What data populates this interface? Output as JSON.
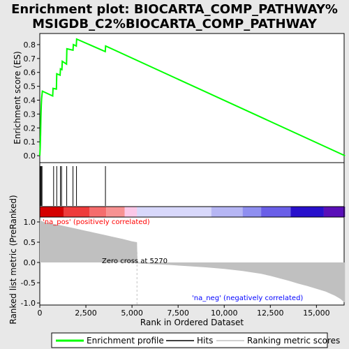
{
  "chart_data": {
    "type": "line",
    "title_line1": "Enrichment plot: BIOCARTA_COMP_PATHWAY%",
    "title_line2": "MSIGDB_C2%BIOCARTA_COMP_PATHWAY",
    "xlabel": "Rank in Ordered Dataset",
    "es_ylabel": "Enrichment score (ES)",
    "metric_ylabel": "Ranked list metric (PreRanked)",
    "xlim": [
      0,
      16500
    ],
    "es_ylim": [
      -0.05,
      0.88
    ],
    "metric_ylim": [
      -1.05,
      1.12
    ],
    "x_ticks": [
      0,
      2500,
      5000,
      7500,
      10000,
      12500,
      15000
    ],
    "x_tick_labels": [
      "0",
      "2,500",
      "5,000",
      "7,500",
      "10,000",
      "12,500",
      "15,000"
    ],
    "es_ticks": [
      0.0,
      0.1,
      0.2,
      0.3,
      0.4,
      0.5,
      0.6,
      0.7,
      0.8
    ],
    "es_tick_labels": [
      "0.0",
      "0.1",
      "0.2",
      "0.3",
      "0.4",
      "0.5",
      "0.6",
      "0.7",
      "0.8"
    ],
    "metric_ticks": [
      1.0,
      0.5,
      0.0,
      -0.5,
      -1.0
    ],
    "metric_tick_labels": [
      "1.0",
      "0.5",
      "0.0",
      "-0.5",
      "-1.0"
    ],
    "enrichment_profile": {
      "x": [
        0,
        20,
        40,
        60,
        80,
        100,
        120,
        140,
        700,
        720,
        900,
        920,
        1100,
        1120,
        1200,
        1220,
        1450,
        1470,
        1800,
        1820,
        1980,
        2000,
        3550,
        3570,
        16550
      ],
      "y": [
        0.0,
        0.05,
        0.15,
        0.28,
        0.36,
        0.41,
        0.44,
        0.465,
        0.43,
        0.485,
        0.48,
        0.59,
        0.58,
        0.625,
        0.62,
        0.68,
        0.66,
        0.77,
        0.76,
        0.8,
        0.79,
        0.84,
        0.75,
        0.79,
        0.0
      ]
    },
    "hits": [
      40,
      80,
      120,
      750,
      920,
      1120,
      1180,
      1460,
      1800,
      1990,
      3560
    ],
    "metric_profile": {
      "x": [
        0,
        200,
        600,
        1000,
        1500,
        2000,
        2500,
        3000,
        3500,
        4000,
        4500,
        5000,
        5270,
        5300,
        6000,
        7000,
        8000,
        9000,
        10000,
        11000,
        12000,
        12500,
        13000,
        13500,
        14000,
        14500,
        15000,
        15500,
        16000,
        16300,
        16550
      ],
      "y": [
        1.05,
        1.0,
        0.96,
        0.93,
        0.88,
        0.83,
        0.78,
        0.73,
        0.68,
        0.63,
        0.58,
        0.52,
        0.5,
        -0.02,
        -0.04,
        -0.06,
        -0.09,
        -0.12,
        -0.16,
        -0.21,
        -0.28,
        -0.33,
        -0.39,
        -0.45,
        -0.52,
        -0.58,
        -0.65,
        -0.72,
        -0.82,
        -0.9,
        -1.0
      ]
    },
    "zero_cross_rank": 5270,
    "annotations": {
      "pos": "'na_pos' (positively correlated)",
      "neg": "'na_neg' (negatively correlated)",
      "zero_cross": "Zero cross at 5270"
    },
    "heatmap_segments": [
      {
        "x0": 0,
        "x1": 1300,
        "color": "#d40000"
      },
      {
        "x0": 1300,
        "x1": 2700,
        "color": "#ee3b3b"
      },
      {
        "x0": 2700,
        "x1": 3600,
        "color": "#f56d6d"
      },
      {
        "x0": 3600,
        "x1": 4600,
        "color": "#f79292"
      },
      {
        "x0": 4600,
        "x1": 5270,
        "color": "#fbc8e8"
      },
      {
        "x0": 5270,
        "x1": 9300,
        "color": "#d8d8fb"
      },
      {
        "x0": 9300,
        "x1": 11000,
        "color": "#b6b6f4"
      },
      {
        "x0": 11000,
        "x1": 12000,
        "color": "#8f8ff0"
      },
      {
        "x0": 12000,
        "x1": 13600,
        "color": "#6a5fe8"
      },
      {
        "x0": 13600,
        "x1": 15400,
        "color": "#2810cc"
      },
      {
        "x0": 15400,
        "x1": 16550,
        "color": "#5a0fb8"
      }
    ],
    "colors": {
      "profile": "#00ff00",
      "hits": "#000000",
      "metric_fill": "#c0c0c0",
      "zero_line": "#c0c0c0",
      "pos_text": "#ff0000",
      "neg_text": "#0000ff",
      "background": "#e8e8e8",
      "plot_bg": "#ffffff"
    },
    "legend": [
      "Enrichment profile",
      "Hits",
      "Ranking metric scores"
    ]
  }
}
